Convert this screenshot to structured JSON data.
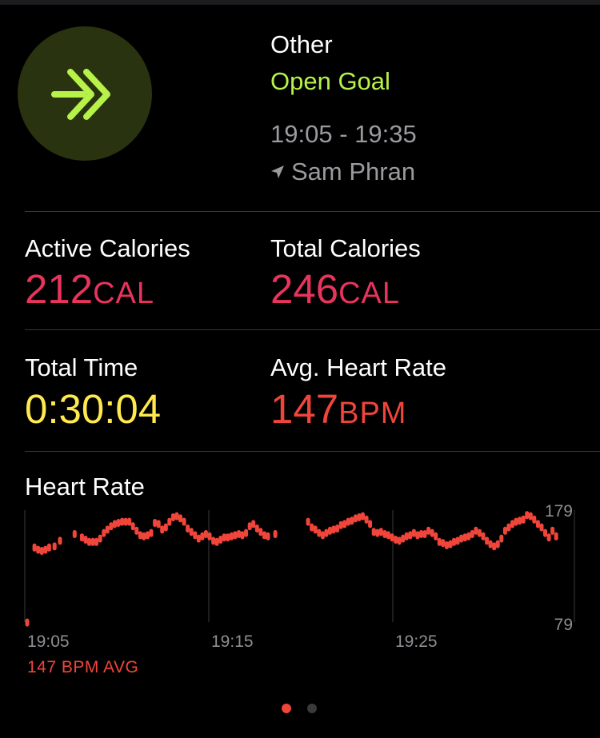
{
  "workout": {
    "type": "Other",
    "goal": "Open Goal",
    "time_range": "19:05 - 19:35",
    "location": "Sam Phran"
  },
  "metrics": {
    "active_calories": {
      "label": "Active Calories",
      "value": "212",
      "unit": "CAL"
    },
    "total_calories": {
      "label": "Total Calories",
      "value": "246",
      "unit": "CAL"
    },
    "total_time": {
      "label": "Total Time",
      "value": "0:30:04"
    },
    "avg_heart_rate": {
      "label": "Avg. Heart Rate",
      "value": "147",
      "unit": "BPM"
    }
  },
  "heart_rate": {
    "title": "Heart Rate",
    "avg_label": "147 BPM AVG"
  },
  "colors": {
    "accent_green": "#b7f249",
    "calories_pink": "#e8345d",
    "time_yellow": "#ffe94e",
    "heart_orange": "#f0453a"
  },
  "icons": {
    "workout": "double-chevron-right-icon",
    "location": "location-arrow-icon"
  },
  "pager": {
    "pages": 2,
    "current": 1
  },
  "chart_data": {
    "type": "scatter",
    "title": "Heart Rate",
    "x_tick_labels": [
      "19:05",
      "19:15",
      "19:25"
    ],
    "y_tick_labels": [
      "179",
      "79"
    ],
    "ylim": [
      79,
      179
    ],
    "xlim": [
      0,
      30
    ],
    "unit": "BPM",
    "points": [
      [
        0.0,
        80
      ],
      [
        0.4,
        147
      ],
      [
        0.6,
        145
      ],
      [
        0.8,
        144
      ],
      [
        1.0,
        145
      ],
      [
        1.2,
        147
      ],
      [
        1.5,
        148
      ],
      [
        1.8,
        153
      ],
      [
        2.6,
        159
      ],
      [
        3.0,
        156
      ],
      [
        3.2,
        154
      ],
      [
        3.4,
        152
      ],
      [
        3.6,
        152
      ],
      [
        3.8,
        152
      ],
      [
        4.0,
        155
      ],
      [
        4.2,
        160
      ],
      [
        4.4,
        163
      ],
      [
        4.6,
        166
      ],
      [
        4.8,
        168
      ],
      [
        5.0,
        169
      ],
      [
        5.2,
        170
      ],
      [
        5.4,
        170
      ],
      [
        5.6,
        170
      ],
      [
        5.8,
        166
      ],
      [
        6.0,
        162
      ],
      [
        6.2,
        158
      ],
      [
        6.4,
        157
      ],
      [
        6.6,
        158
      ],
      [
        6.8,
        160
      ],
      [
        7.0,
        169
      ],
      [
        7.2,
        168
      ],
      [
        7.4,
        163
      ],
      [
        7.6,
        165
      ],
      [
        7.8,
        170
      ],
      [
        8.0,
        174
      ],
      [
        8.2,
        175
      ],
      [
        8.4,
        173
      ],
      [
        8.6,
        170
      ],
      [
        8.8,
        164
      ],
      [
        9.0,
        161
      ],
      [
        9.2,
        158
      ],
      [
        9.4,
        155
      ],
      [
        9.6,
        157
      ],
      [
        9.8,
        159
      ],
      [
        10.0,
        157
      ],
      [
        10.2,
        153
      ],
      [
        10.4,
        152
      ],
      [
        10.6,
        154
      ],
      [
        10.8,
        156
      ],
      [
        11.0,
        156
      ],
      [
        11.2,
        157
      ],
      [
        11.4,
        158
      ],
      [
        11.6,
        159
      ],
      [
        11.8,
        158
      ],
      [
        12.0,
        160
      ],
      [
        12.2,
        166
      ],
      [
        12.4,
        168
      ],
      [
        12.6,
        164
      ],
      [
        12.8,
        161
      ],
      [
        13.0,
        158
      ],
      [
        13.2,
        157
      ],
      [
        13.6,
        159
      ],
      [
        15.4,
        170
      ],
      [
        15.6,
        165
      ],
      [
        15.8,
        163
      ],
      [
        16.0,
        160
      ],
      [
        16.2,
        158
      ],
      [
        16.4,
        160
      ],
      [
        16.6,
        162
      ],
      [
        16.8,
        163
      ],
      [
        17.0,
        164
      ],
      [
        17.2,
        167
      ],
      [
        17.4,
        168
      ],
      [
        17.6,
        170
      ],
      [
        17.8,
        171
      ],
      [
        18.0,
        173
      ],
      [
        18.2,
        174
      ],
      [
        18.4,
        175
      ],
      [
        18.6,
        172
      ],
      [
        18.8,
        168
      ],
      [
        19.0,
        161
      ],
      [
        19.2,
        160
      ],
      [
        19.4,
        161
      ],
      [
        19.6,
        159
      ],
      [
        19.8,
        158
      ],
      [
        20.0,
        156
      ],
      [
        20.2,
        154
      ],
      [
        20.4,
        153
      ],
      [
        20.6,
        155
      ],
      [
        20.8,
        157
      ],
      [
        21.0,
        158
      ],
      [
        21.2,
        160
      ],
      [
        21.4,
        158
      ],
      [
        21.6,
        159
      ],
      [
        21.8,
        159
      ],
      [
        22.0,
        162
      ],
      [
        22.2,
        160
      ],
      [
        22.4,
        157
      ],
      [
        22.6,
        152
      ],
      [
        22.8,
        151
      ],
      [
        23.0,
        149
      ],
      [
        23.2,
        150
      ],
      [
        23.4,
        152
      ],
      [
        23.6,
        153
      ],
      [
        23.8,
        155
      ],
      [
        24.0,
        156
      ],
      [
        24.2,
        157
      ],
      [
        24.4,
        159
      ],
      [
        24.6,
        162
      ],
      [
        24.8,
        160
      ],
      [
        25.0,
        157
      ],
      [
        25.2,
        153
      ],
      [
        25.4,
        150
      ],
      [
        25.6,
        148
      ],
      [
        25.8,
        150
      ],
      [
        26.0,
        155
      ],
      [
        26.2,
        162
      ],
      [
        26.4,
        165
      ],
      [
        26.6,
        168
      ],
      [
        26.8,
        170
      ],
      [
        27.0,
        171
      ],
      [
        27.2,
        172
      ],
      [
        27.4,
        176
      ],
      [
        27.6,
        175
      ],
      [
        27.8,
        172
      ],
      [
        28.0,
        168
      ],
      [
        28.2,
        165
      ],
      [
        28.4,
        160
      ],
      [
        28.6,
        156
      ],
      [
        28.8,
        162
      ],
      [
        29.0,
        157
      ]
    ]
  }
}
